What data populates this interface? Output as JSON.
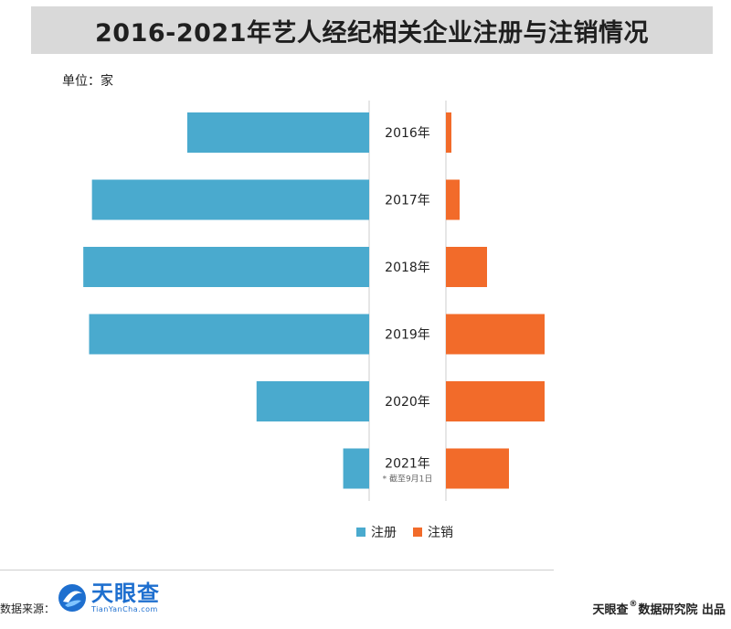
{
  "title": "2016-2021年艺人经纪相关企业注册与注销情况",
  "unit_label": "单位：家",
  "colors": {
    "registered": "#4aaace",
    "cancelled": "#f26b2a",
    "divider": "#cccccc"
  },
  "chart_data": {
    "type": "bar",
    "orientation": "horizontal-diverging",
    "categories": [
      "2016年",
      "2017年",
      "2018年",
      "2019年",
      "2020年",
      "2021年"
    ],
    "category_notes": [
      "",
      "",
      "",
      "",
      "",
      "* 截至9月1日"
    ],
    "series": [
      {
        "name": "注册",
        "side": "left",
        "values": [
          6300,
          9600,
          9900,
          9700,
          3900,
          900
        ]
      },
      {
        "name": "注销",
        "side": "right",
        "values": [
          200,
          500,
          1500,
          3600,
          3600,
          2300
        ]
      }
    ],
    "left_max": 10000,
    "right_max": 10000,
    "legend_position": "bottom"
  },
  "footer": {
    "source_label": "数据来源：",
    "logo_cn": "天眼查",
    "logo_en": "TianYanCha.com",
    "credit_brand": "天眼查",
    "credit_mark": "®",
    "credit_rest": "数据研究院 出品"
  }
}
